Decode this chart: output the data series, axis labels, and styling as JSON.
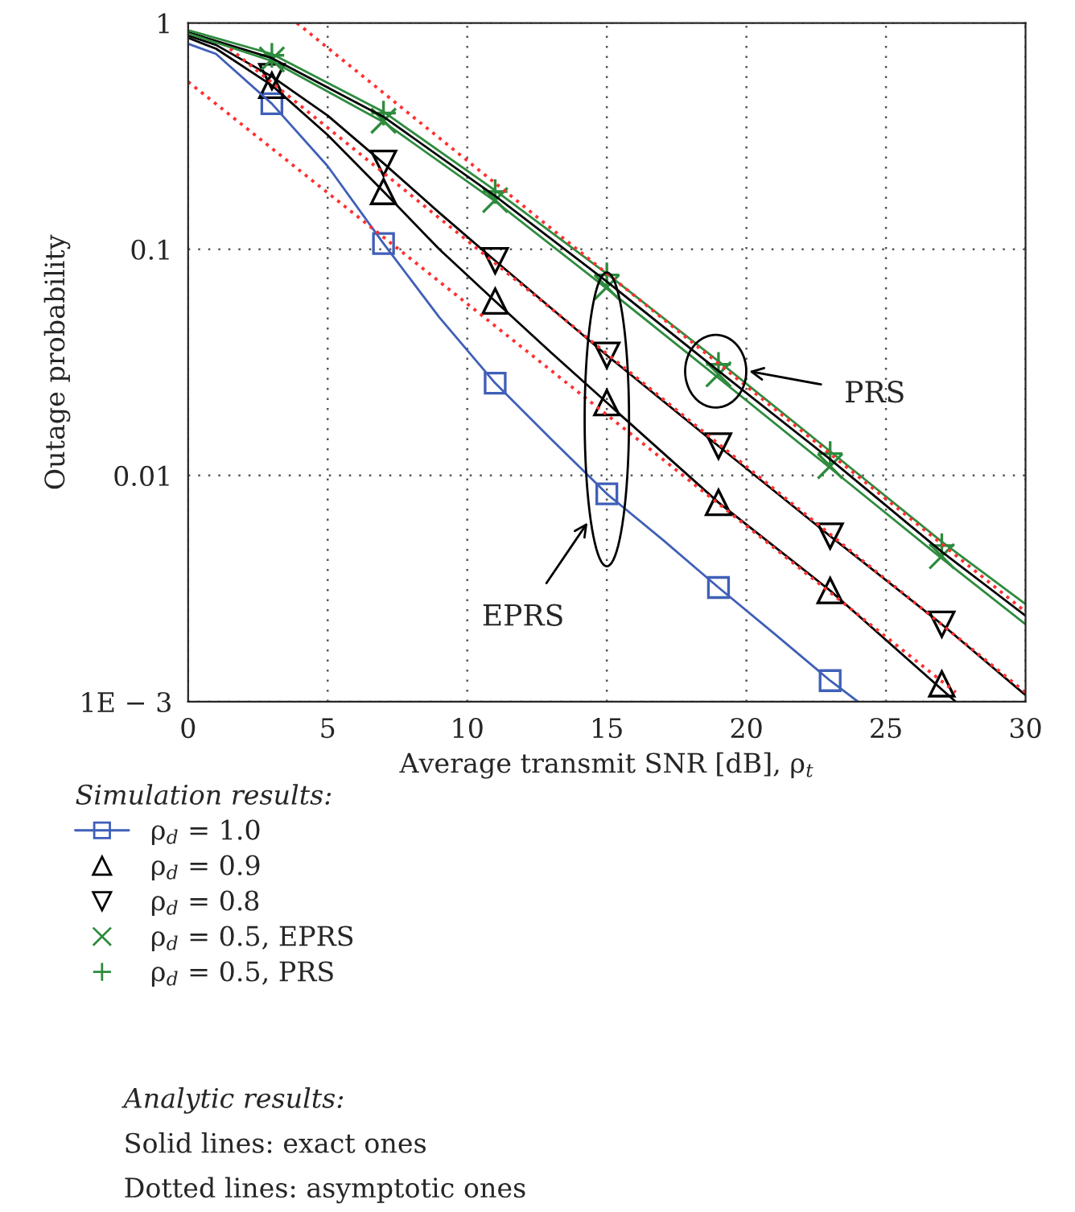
{
  "chart_data": {
    "type": "line",
    "xlabel": "Average transmit SNR [dB], ρ$_{t}$",
    "ylabel": "Outage probability",
    "legend_title": "Simulation results:",
    "log": "y",
    "grid": true,
    "legend": "bottom",
    "xlim": [
      0,
      30
    ],
    "xticks": [
      0,
      5,
      10,
      15,
      20,
      25,
      30
    ],
    "ylim": [
      0.001,
      1
    ],
    "yticks": [
      {
        "value": 0.001,
        "label": "1E − 3"
      },
      0.01,
      0.1,
      1
    ],
    "series": [
      {
        "name": "ρ$_{d}$ = 1.0",
        "type": "scatter",
        "color": "#3f5fb8",
        "marker": "square",
        "line_style": "solid",
        "x": [
          3,
          7,
          11,
          15,
          19,
          23
        ],
        "values": [
          0.44,
          0.106,
          0.0256,
          0.0083,
          0.0032,
          0.00124
        ]
      },
      {
        "name": "ρ$_{d}$ = 0.9",
        "type": "scatter",
        "color": "#000000",
        "marker": "triangle",
        "x": [
          3,
          7,
          11,
          15,
          19,
          23,
          27
        ],
        "values": [
          0.53,
          0.18,
          0.059,
          0.021,
          0.0076,
          0.0031,
          0.0012
        ]
      },
      {
        "name": "ρ$_{d}$ = 0.8",
        "type": "scatter",
        "color": "#000000",
        "marker": "triangle_down",
        "x": [
          3,
          7,
          11,
          15,
          19,
          23,
          27
        ],
        "values": [
          0.58,
          0.24,
          0.089,
          0.034,
          0.0135,
          0.0054,
          0.0022
        ]
      },
      {
        "name": "ρ$_{d}$ = 0.5, EPRS",
        "type": "scatter",
        "color": "#2e8b3e",
        "marker": "cross",
        "x": [
          3,
          7,
          11,
          15,
          19,
          23,
          27
        ],
        "values": [
          0.69,
          0.37,
          0.165,
          0.068,
          0.028,
          0.011,
          0.0044
        ]
      },
      {
        "name": "ρ$_{d}$ = 0.5, PRS",
        "type": "scatter",
        "color": "#2e8b3e",
        "marker": "plus",
        "x": [
          3,
          7,
          11,
          15,
          19,
          23,
          27
        ],
        "values": [
          0.72,
          0.4,
          0.18,
          0.077,
          0.031,
          0.0125,
          0.0049
        ]
      },
      {
        "color": "#3f5fb8",
        "x": [
          0,
          1,
          3,
          5,
          7,
          9,
          11,
          13,
          15,
          17,
          19,
          21,
          23,
          24
        ],
        "values": [
          0.81,
          0.73,
          0.44,
          0.233,
          0.106,
          0.05,
          0.0256,
          0.0145,
          0.0083,
          0.0052,
          0.0032,
          0.002,
          0.00124,
          0.001
        ]
      },
      {
        "color": "#000000",
        "x": [
          0,
          1,
          3,
          5,
          7,
          9,
          11,
          13,
          15,
          19,
          23,
          27.5
        ],
        "values": [
          0.86,
          0.77,
          0.53,
          0.32,
          0.18,
          0.1,
          0.059,
          0.035,
          0.021,
          0.0076,
          0.0031,
          0.001
        ]
      },
      {
        "color": "#000000",
        "x": [
          0,
          1,
          3,
          5,
          7,
          9,
          11,
          13,
          15,
          19,
          23,
          27,
          30
        ],
        "values": [
          0.88,
          0.8,
          0.58,
          0.39,
          0.24,
          0.145,
          0.089,
          0.055,
          0.034,
          0.0135,
          0.0054,
          0.0022,
          0.00107
        ]
      },
      {
        "color": "#000000",
        "x": [
          0,
          3,
          7,
          11,
          15,
          19,
          23,
          27,
          30
        ],
        "values": [
          0.91,
          0.7,
          0.385,
          0.172,
          0.072,
          0.029,
          0.0118,
          0.0046,
          0.0024
        ]
      },
      {
        "color": "#2e8b3e",
        "x": [
          0,
          3,
          7,
          11,
          15,
          19,
          23,
          27,
          30
        ],
        "values": [
          0.9,
          0.68,
          0.365,
          0.163,
          0.067,
          0.027,
          0.0108,
          0.0043,
          0.0022
        ]
      },
      {
        "color": "#2e8b3e",
        "x": [
          0,
          3,
          7,
          11,
          15,
          19,
          23,
          27,
          30
        ],
        "values": [
          0.93,
          0.73,
          0.405,
          0.182,
          0.078,
          0.032,
          0.0128,
          0.0051,
          0.0027
        ]
      },
      {
        "color": "#ff3030",
        "line_style": "dotted",
        "x": [
          0,
          27.5
        ],
        "values": [
          0.55,
          0.0011
        ]
      },
      {
        "color": "#ff3030",
        "line_style": "dotted",
        "x": [
          1.5,
          30
        ],
        "values": [
          0.77,
          0.0011
        ]
      },
      {
        "color": "#ff3030",
        "line_style": "dotted",
        "x": [
          3.9,
          30
        ],
        "values": [
          1,
          0.0025
        ]
      }
    ],
    "annotations": [
      "PRS",
      "EPRS",
      "Analytic results:",
      "Solid lines: exact ones",
      "Dotted lines: asymptotic ones"
    ]
  }
}
